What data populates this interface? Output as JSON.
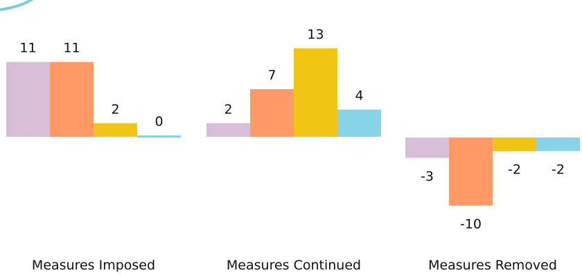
{
  "chart_data": {
    "type": "bar",
    "categories": [
      "Measures Imposed",
      "Measures Continued",
      "Measures Removed"
    ],
    "series": [
      {
        "values": [
          11,
          2,
          -3
        ],
        "color": "#d8bfd8"
      },
      {
        "values": [
          11,
          7,
          -10
        ],
        "color": "#ff9966"
      },
      {
        "values": [
          2,
          13,
          -2
        ],
        "color": "#f0c514"
      },
      {
        "values": [
          0,
          4,
          -2
        ],
        "color": "#87d3e8"
      }
    ],
    "title": "",
    "xlabel": "",
    "ylabel": "",
    "grid": false,
    "legend": "none",
    "data_labels": true,
    "decoration": {
      "arc_color": "#7ec8e3"
    }
  }
}
